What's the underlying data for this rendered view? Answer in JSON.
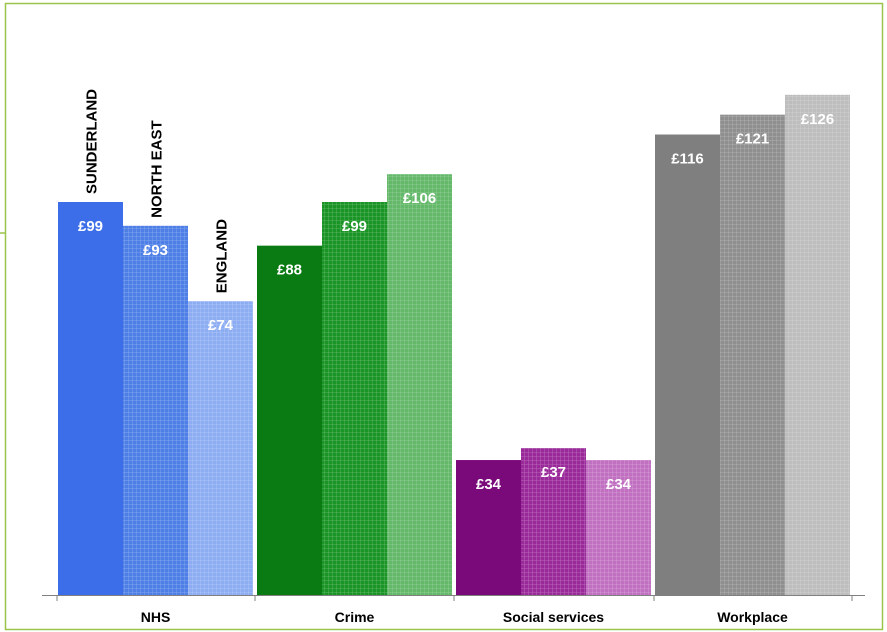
{
  "chart_data": {
    "type": "bar",
    "categories": [
      "NHS",
      "Crime",
      "Social services",
      "Workplace"
    ],
    "series": [
      {
        "name": "SUNDERLAND",
        "values": [
          99,
          88,
          34,
          116
        ],
        "labels": [
          "£99",
          "£88",
          "£34",
          "£116"
        ],
        "colors": [
          "#3B6EE8",
          "#0A7A12",
          "#7A0A7A",
          "#7F7F7F"
        ],
        "pattern": "solid"
      },
      {
        "name": "NORTH EAST",
        "values": [
          93,
          99,
          37,
          121
        ],
        "labels": [
          "£93",
          "£99",
          "£37",
          "£121"
        ],
        "colors": [
          "#4E7FE6",
          "#199425",
          "#9A2A9A",
          "#8F8F8F"
        ],
        "pattern": "grid"
      },
      {
        "name": "ENGLAND",
        "values": [
          74,
          106,
          34,
          126
        ],
        "labels": [
          "£74",
          "£106",
          "£34",
          "£126"
        ],
        "colors": [
          "#8DADF2",
          "#63B86A",
          "#C170C1",
          "#BDBDBD"
        ],
        "pattern": "grid"
      }
    ],
    "ylim": [
      0,
      140
    ],
    "grid": false,
    "legend": "series names printed vertically above the NHS bars"
  }
}
